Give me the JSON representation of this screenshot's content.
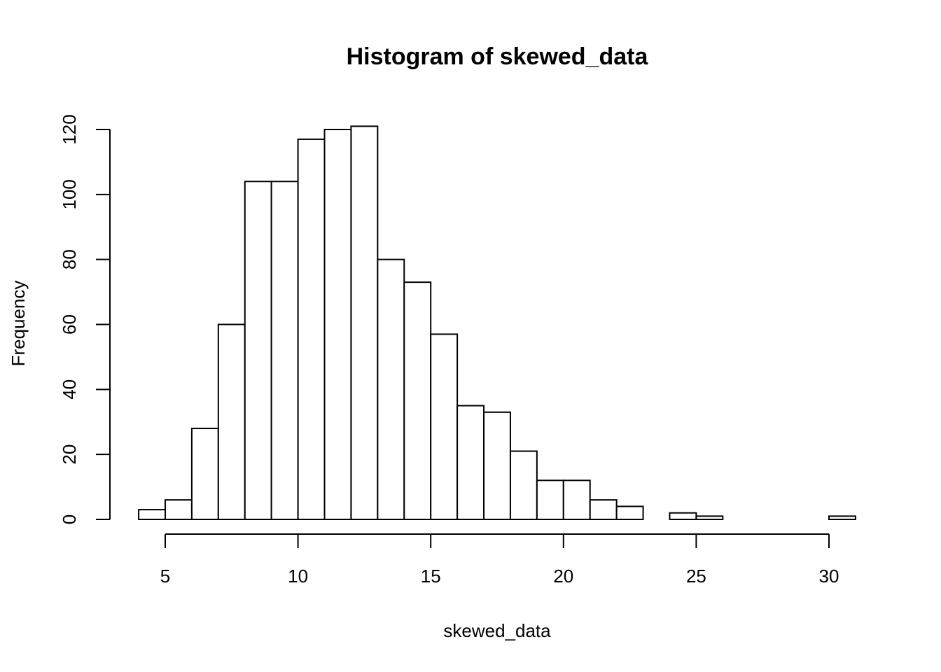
{
  "chart_data": {
    "type": "bar",
    "title": "Histogram of skewed_data",
    "xlabel": "skewed_data",
    "ylabel": "Frequency",
    "bin_edges": [
      4,
      5,
      6,
      7,
      8,
      9,
      10,
      11,
      12,
      13,
      14,
      15,
      16,
      17,
      18,
      19,
      20,
      21,
      22,
      23,
      24,
      25,
      26,
      27,
      28,
      29,
      30,
      31
    ],
    "values": [
      3,
      6,
      28,
      60,
      104,
      104,
      117,
      120,
      121,
      80,
      73,
      57,
      35,
      33,
      21,
      12,
      12,
      6,
      4,
      0,
      2,
      1,
      0,
      0,
      0,
      0,
      1
    ],
    "xticks": [
      5,
      10,
      15,
      20,
      25,
      30
    ],
    "xtick_labels": [
      "5",
      "10",
      "15",
      "20",
      "25",
      "30"
    ],
    "yticks": [
      0,
      20,
      40,
      60,
      80,
      100,
      120
    ],
    "ytick_labels": [
      "0",
      "20",
      "40",
      "60",
      "80",
      "100",
      "120"
    ],
    "xlim": [
      4,
      31
    ],
    "ylim": [
      0,
      120
    ],
    "grid": false,
    "bar_fill": "#ffffff",
    "bar_stroke": "#000000"
  }
}
